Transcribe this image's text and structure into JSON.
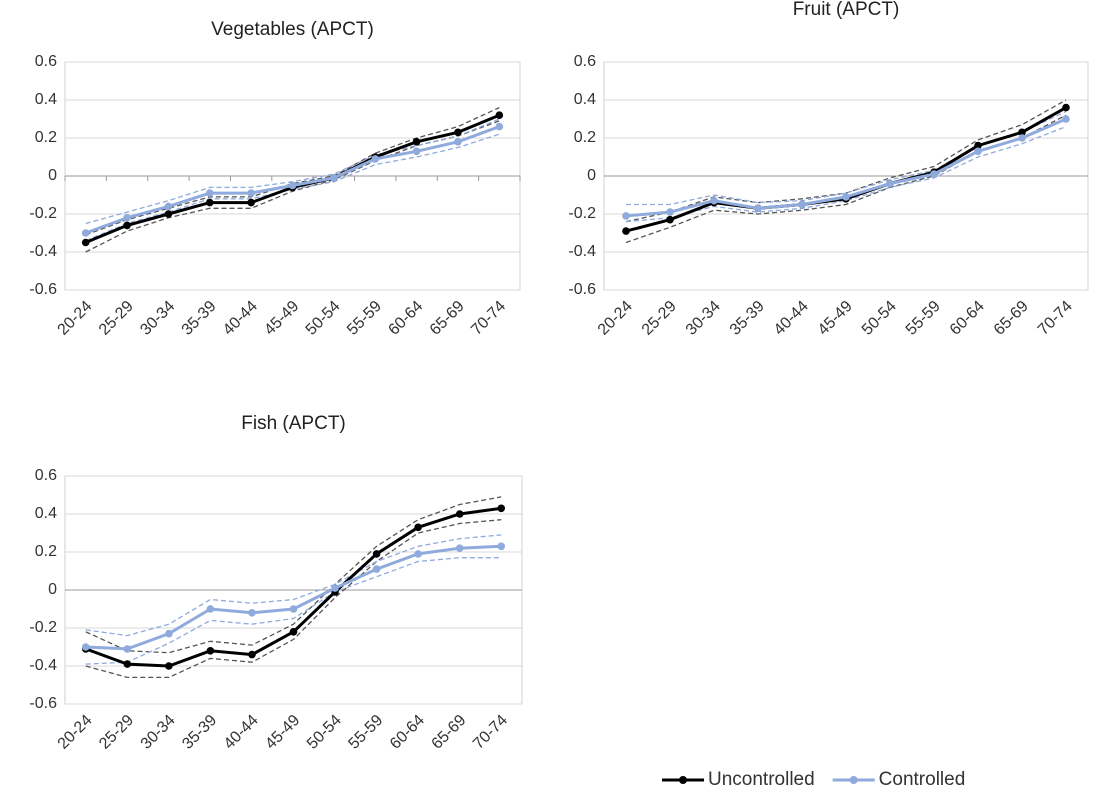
{
  "chart_data": [
    {
      "type": "line",
      "title": "Vegetables (APCT)",
      "categories": [
        "20-24",
        "25-29",
        "30-34",
        "35-39",
        "40-44",
        "45-49",
        "50-54",
        "55-59",
        "60-64",
        "65-69",
        "70-74"
      ],
      "ylim": [
        -0.6,
        0.6
      ],
      "yticks": [
        -0.6,
        -0.4,
        -0.2,
        0,
        0.2,
        0.4,
        0.6
      ],
      "grid": true,
      "x_axis_tick_marks": true,
      "series": [
        {
          "color": "#555555",
          "dashed": true,
          "values": [
            -0.4,
            -0.29,
            -0.22,
            -0.17,
            -0.17,
            -0.08,
            -0.02,
            0.08,
            0.16,
            0.21,
            0.29
          ]
        },
        {
          "color": "#555555",
          "dashed": true,
          "values": [
            -0.31,
            -0.23,
            -0.17,
            -0.11,
            -0.11,
            -0.04,
            0.0,
            0.12,
            0.2,
            0.26,
            0.36
          ]
        },
        {
          "color": "#8faadc",
          "dashed": true,
          "values": [
            -0.34,
            -0.25,
            -0.19,
            -0.12,
            -0.12,
            -0.07,
            -0.03,
            0.06,
            0.1,
            0.15,
            0.22
          ]
        },
        {
          "color": "#8faadc",
          "dashed": true,
          "values": [
            -0.25,
            -0.19,
            -0.13,
            -0.06,
            -0.06,
            -0.03,
            0.01,
            0.11,
            0.16,
            0.21,
            0.3
          ]
        },
        {
          "name": "Uncontrolled",
          "color": "#000000",
          "values": [
            -0.35,
            -0.26,
            -0.2,
            -0.14,
            -0.14,
            -0.06,
            -0.01,
            0.1,
            0.18,
            0.23,
            0.32
          ]
        },
        {
          "name": "Controlled",
          "color": "#8faadc",
          "values": [
            -0.3,
            -0.22,
            -0.16,
            -0.09,
            -0.09,
            -0.05,
            -0.01,
            0.09,
            0.13,
            0.18,
            0.26
          ]
        }
      ]
    },
    {
      "type": "line",
      "title": "Fruit (APCT)",
      "categories": [
        "20-24",
        "25-29",
        "30-34",
        "35-39",
        "40-44",
        "45-49",
        "50-54",
        "55-59",
        "60-64",
        "65-69",
        "70-74"
      ],
      "ylim": [
        -0.6,
        0.6
      ],
      "yticks": [
        -0.6,
        -0.4,
        -0.2,
        0,
        0.2,
        0.4,
        0.6
      ],
      "grid": true,
      "series": [
        {
          "color": "#555555",
          "dashed": true,
          "values": [
            -0.35,
            -0.27,
            -0.18,
            -0.2,
            -0.18,
            -0.15,
            -0.06,
            0.0,
            0.13,
            0.2,
            0.32
          ]
        },
        {
          "color": "#555555",
          "dashed": true,
          "values": [
            -0.24,
            -0.19,
            -0.11,
            -0.14,
            -0.12,
            -0.09,
            -0.01,
            0.05,
            0.19,
            0.27,
            0.4
          ]
        },
        {
          "color": "#8faadc",
          "dashed": true,
          "values": [
            -0.24,
            -0.22,
            -0.16,
            -0.19,
            -0.17,
            -0.13,
            -0.06,
            -0.01,
            0.1,
            0.17,
            0.26
          ]
        },
        {
          "color": "#8faadc",
          "dashed": true,
          "values": [
            -0.15,
            -0.15,
            -0.1,
            -0.14,
            -0.13,
            -0.09,
            -0.02,
            0.03,
            0.16,
            0.23,
            0.34
          ]
        },
        {
          "name": "Uncontrolled",
          "color": "#000000",
          "values": [
            -0.29,
            -0.23,
            -0.14,
            -0.17,
            -0.15,
            -0.12,
            -0.04,
            0.02,
            0.16,
            0.23,
            0.36
          ]
        },
        {
          "name": "Controlled",
          "color": "#8faadc",
          "values": [
            -0.21,
            -0.19,
            -0.13,
            -0.17,
            -0.15,
            -0.11,
            -0.04,
            0.01,
            0.13,
            0.2,
            0.3
          ]
        }
      ]
    },
    {
      "type": "line",
      "title": "Fish (APCT)",
      "categories": [
        "20-24",
        "25-29",
        "30-34",
        "35-39",
        "40-44",
        "45-49",
        "50-54",
        "55-59",
        "60-64",
        "65-69",
        "70-74"
      ],
      "ylim": [
        -0.6,
        0.6
      ],
      "yticks": [
        -0.6,
        -0.4,
        -0.2,
        0,
        0.2,
        0.4,
        0.6
      ],
      "grid": true,
      "series": [
        {
          "color": "#555555",
          "dashed": true,
          "values": [
            -0.4,
            -0.46,
            -0.46,
            -0.36,
            -0.38,
            -0.26,
            -0.04,
            0.15,
            0.3,
            0.35,
            0.37
          ]
        },
        {
          "color": "#555555",
          "dashed": true,
          "values": [
            -0.22,
            -0.32,
            -0.33,
            -0.27,
            -0.29,
            -0.18,
            0.03,
            0.23,
            0.37,
            0.45,
            0.49
          ]
        },
        {
          "color": "#8faadc",
          "dashed": true,
          "values": [
            -0.39,
            -0.38,
            -0.28,
            -0.16,
            -0.18,
            -0.15,
            -0.01,
            0.07,
            0.15,
            0.17,
            0.17
          ]
        },
        {
          "color": "#8faadc",
          "dashed": true,
          "values": [
            -0.21,
            -0.24,
            -0.18,
            -0.05,
            -0.07,
            -0.05,
            0.03,
            0.15,
            0.23,
            0.27,
            0.29
          ]
        },
        {
          "name": "Uncontrolled",
          "color": "#000000",
          "values": [
            -0.31,
            -0.39,
            -0.4,
            -0.32,
            -0.34,
            -0.22,
            -0.01,
            0.19,
            0.33,
            0.4,
            0.43
          ]
        },
        {
          "name": "Controlled",
          "color": "#8faadc",
          "values": [
            -0.3,
            -0.31,
            -0.23,
            -0.1,
            -0.12,
            -0.1,
            0.01,
            0.11,
            0.19,
            0.22,
            0.23
          ]
        }
      ]
    }
  ]
}
